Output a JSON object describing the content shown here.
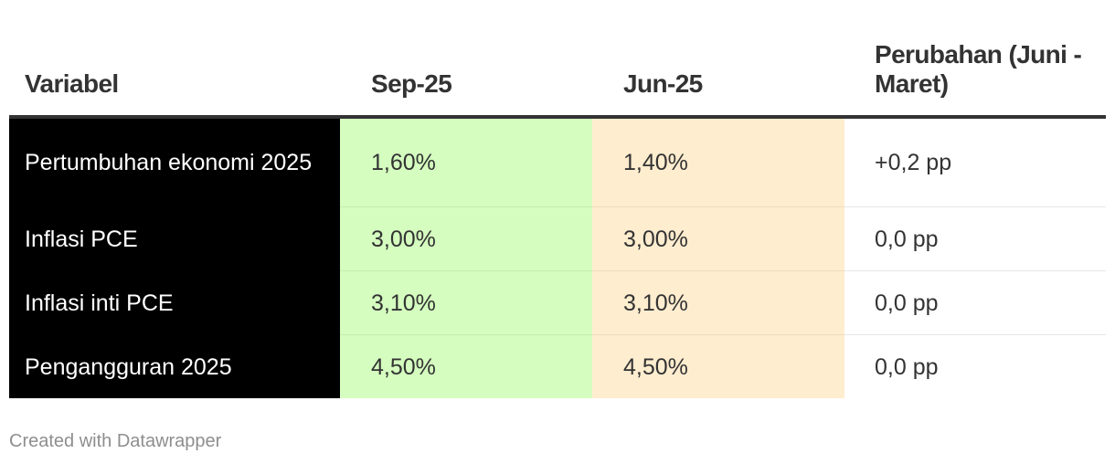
{
  "chart_data": {
    "type": "table",
    "columns": [
      "Variabel",
      "Sep-25",
      "Jun-25",
      "Perubahan (Juni - Maret)"
    ],
    "rows": [
      [
        "Pertumbuhan ekonomi 2025",
        "1,60%",
        "1,40%",
        "+0,2 pp"
      ],
      [
        "Inflasi PCE",
        "3,00%",
        "3,00%",
        "0,0 pp"
      ],
      [
        "Inflasi inti PCE",
        "3,10%",
        "3,10%",
        "0,0 pp"
      ],
      [
        "Pengangguran 2025",
        "4,50%",
        "4,50%",
        "0,0 pp"
      ]
    ],
    "column_colors": {
      "Variabel": "#000000",
      "Sep-25": "#d4fdbf",
      "Jun-25": "#ffedcf",
      "Perubahan (Juni - Maret)": "#ffffff"
    }
  },
  "footer": {
    "credit": "Created with Datawrapper"
  }
}
